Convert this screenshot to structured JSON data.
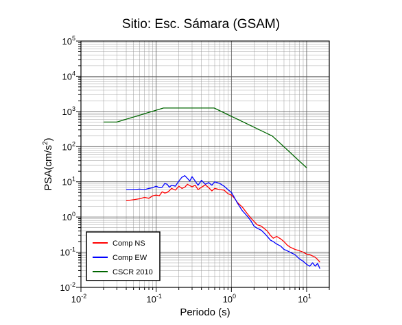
{
  "chart_data": {
    "type": "line",
    "title": "Sitio: Esc. Sámara (GSAM)",
    "xlabel": "Periodo (s)",
    "ylabel_base": "PSA(cm/s",
    "ylabel_exp": "2",
    "ylabel_close": ")",
    "xscale": "log",
    "yscale": "log",
    "xlim": [
      0.01,
      20
    ],
    "ylim": [
      0.01,
      100000
    ],
    "grid": true,
    "legend_position": "bottom-left",
    "x_ticks": [
      {
        "base": "10",
        "exp": "-2"
      },
      {
        "base": "10",
        "exp": "-1"
      },
      {
        "base": "10",
        "exp": "0"
      },
      {
        "base": "10",
        "exp": "1"
      }
    ],
    "y_ticks": [
      {
        "base": "10",
        "exp": "-2"
      },
      {
        "base": "10",
        "exp": "-1"
      },
      {
        "base": "10",
        "exp": "0"
      },
      {
        "base": "10",
        "exp": "1"
      },
      {
        "base": "10",
        "exp": "2"
      },
      {
        "base": "10",
        "exp": "3"
      },
      {
        "base": "10",
        "exp": "4"
      },
      {
        "base": "10",
        "exp": "5"
      }
    ],
    "series": [
      {
        "name": "Comp NS",
        "color": "#ff0000",
        "x": [
          0.04,
          0.05,
          0.06,
          0.07,
          0.08,
          0.09,
          0.1,
          0.11,
          0.12,
          0.13,
          0.14,
          0.15,
          0.16,
          0.18,
          0.2,
          0.22,
          0.24,
          0.26,
          0.28,
          0.3,
          0.33,
          0.36,
          0.4,
          0.45,
          0.5,
          0.55,
          0.6,
          0.7,
          0.8,
          0.9,
          1.0,
          1.1,
          1.2,
          1.4,
          1.6,
          1.8,
          2.0,
          2.2,
          2.5,
          2.8,
          3.0,
          3.3,
          3.6,
          4.0,
          4.5,
          5.0,
          5.5,
          6.0,
          7.0,
          8.0,
          9.0,
          10.0,
          11.0,
          12.0,
          13.0,
          14.0,
          15.0
        ],
        "y": [
          2.9,
          3.1,
          3.3,
          3.6,
          3.4,
          4.0,
          4.2,
          4.0,
          5.2,
          4.8,
          5.0,
          5.6,
          6.5,
          5.8,
          7.5,
          6.5,
          7.0,
          8.5,
          7.8,
          7.2,
          8.0,
          6.0,
          7.0,
          8.2,
          6.8,
          5.5,
          6.5,
          6.0,
          5.8,
          4.6,
          4.2,
          3.4,
          2.6,
          1.9,
          1.3,
          0.95,
          0.75,
          0.6,
          0.55,
          0.45,
          0.4,
          0.3,
          0.25,
          0.28,
          0.24,
          0.2,
          0.16,
          0.14,
          0.12,
          0.11,
          0.1,
          0.088,
          0.085,
          0.078,
          0.072,
          0.062,
          0.052
        ]
      },
      {
        "name": "Comp EW",
        "color": "#0000ff",
        "x": [
          0.04,
          0.05,
          0.06,
          0.07,
          0.08,
          0.09,
          0.1,
          0.11,
          0.12,
          0.13,
          0.14,
          0.15,
          0.16,
          0.18,
          0.2,
          0.22,
          0.24,
          0.26,
          0.28,
          0.3,
          0.33,
          0.36,
          0.4,
          0.45,
          0.5,
          0.55,
          0.6,
          0.7,
          0.8,
          0.9,
          1.0,
          1.1,
          1.2,
          1.4,
          1.6,
          1.8,
          2.0,
          2.2,
          2.5,
          2.8,
          3.0,
          3.3,
          3.6,
          4.0,
          4.5,
          5.0,
          5.5,
          6.0,
          7.0,
          8.0,
          9.0,
          10.0,
          11.0,
          12.0,
          13.0,
          14.0,
          15.0
        ],
        "y": [
          6.0,
          6.0,
          6.2,
          6.0,
          6.5,
          6.8,
          7.5,
          6.8,
          7.0,
          9.0,
          8.5,
          7.0,
          8.0,
          7.5,
          10.5,
          13.5,
          15.0,
          12.5,
          10.5,
          14.0,
          10.5,
          8.0,
          11.0,
          8.5,
          9.5,
          8.0,
          10.0,
          9.0,
          7.5,
          6.0,
          5.0,
          3.5,
          2.5,
          1.5,
          1.1,
          0.8,
          0.55,
          0.48,
          0.42,
          0.33,
          0.28,
          0.22,
          0.2,
          0.17,
          0.15,
          0.12,
          0.11,
          0.1,
          0.085,
          0.065,
          0.055,
          0.045,
          0.04,
          0.05,
          0.04,
          0.048,
          0.034
        ]
      },
      {
        "name": "CSCR 2010",
        "color": "#006600",
        "x": [
          0.02,
          0.03,
          0.125,
          0.59,
          3.5,
          10.0
        ],
        "y": [
          500,
          500,
          1250,
          1250,
          200,
          25
        ]
      }
    ]
  }
}
